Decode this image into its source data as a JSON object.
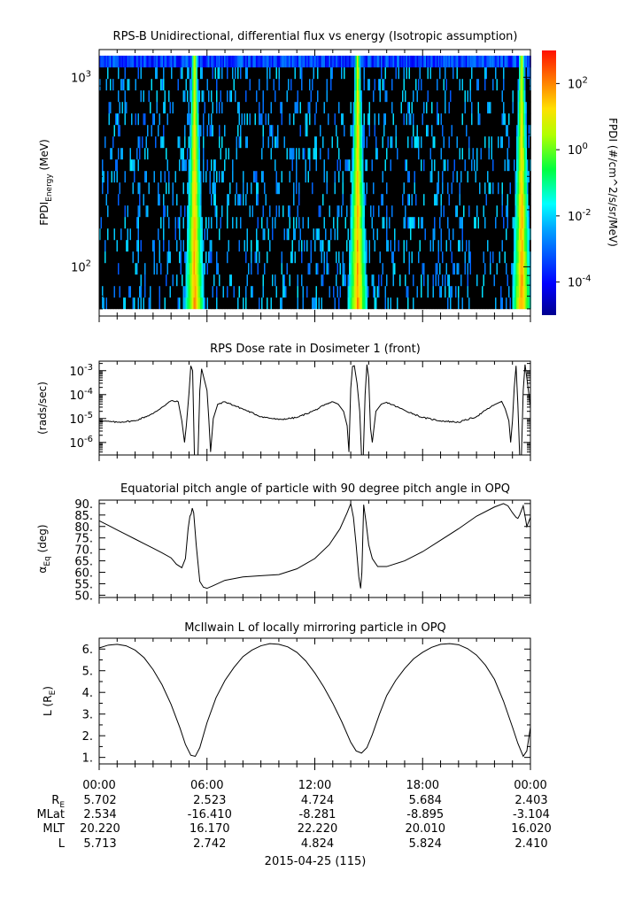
{
  "chart_data": [
    {
      "type": "heatmap",
      "title": "RPS-B  Unidirectional, differential flux vs energy (Isotropic assumption)",
      "ylabel": "FPDI_Energy (MeV)",
      "ylabel_main": "FPDI",
      "ylabel_sub": "Energy",
      "ylabel_unit": " (MeV)",
      "yscale": "log",
      "ylim": [
        55,
        1400
      ],
      "yticks": [
        {
          "value": 100,
          "label_base": "10",
          "label_exp": "2"
        },
        {
          "value": 1000,
          "label_base": "10",
          "label_exp": "3"
        }
      ],
      "xlim_hours": [
        0,
        24
      ],
      "colorbar": {
        "label": "FPDI (#/cm^2/s/sr/MeV)",
        "scale": "log",
        "range_log10": [
          -5,
          3
        ],
        "ticks": [
          {
            "log10": 2,
            "label_base": "10",
            "label_exp": "2"
          },
          {
            "log10": 0,
            "label_base": "10",
            "label_exp": "0"
          },
          {
            "log10": -2,
            "label_base": "10",
            "label_exp": "-2"
          },
          {
            "log10": -4,
            "label_base": "10",
            "label_exp": "-4"
          }
        ]
      },
      "radiation_belt_crossings_hours": [
        5.0,
        5.55,
        14.1,
        14.6,
        23.2,
        23.75
      ],
      "energy_channels": 22
    },
    {
      "type": "line",
      "title": "RPS  Dose rate in Dosimeter 1 (front)",
      "ylabel": "(rads/sec)",
      "yscale": "log",
      "ylim": [
        3e-07,
        0.0025
      ],
      "yticks": [
        {
          "value": 0.001,
          "label_base": "10",
          "label_exp": "-3"
        },
        {
          "value": 0.0001,
          "label_base": "10",
          "label_exp": "-4"
        },
        {
          "value": 1e-05,
          "label_base": "10",
          "label_exp": "-5"
        },
        {
          "value": 1e-06,
          "label_base": "10",
          "label_exp": "-6"
        }
      ],
      "x_hours": [
        0,
        1,
        2,
        3,
        3.5,
        4,
        4.4,
        4.5,
        4.6,
        4.75,
        4.85,
        5.0,
        5.1,
        5.2,
        5.3,
        5.5,
        5.6,
        5.7,
        6.0,
        6.1,
        6.2,
        6.35,
        6.6,
        7,
        8,
        9,
        10,
        11,
        12,
        12.5,
        13,
        13.3,
        13.6,
        13.8,
        13.9,
        14.0,
        14.1,
        14.2,
        14.35,
        14.5,
        14.6,
        14.7,
        14.8,
        14.9,
        15.0,
        15.1,
        15.2,
        15.4,
        15.7,
        16,
        17,
        18,
        19,
        20,
        21,
        21.5,
        22,
        22.4,
        22.6,
        22.8,
        22.9,
        23.0,
        23.1,
        23.2,
        23.3,
        23.4,
        23.5,
        23.6,
        23.7,
        23.8,
        24
      ],
      "y_values": [
        8e-06,
        7e-06,
        8e-06,
        1.6e-05,
        3e-05,
        5.5e-05,
        5e-05,
        2e-05,
        8e-06,
        1e-06,
        5e-06,
        0.00012,
        0.0016,
        0.001,
        3e-07,
        3e-07,
        0.00015,
        0.0012,
        0.00015,
        1e-05,
        4e-07,
        1e-05,
        4e-05,
        5e-05,
        2.5e-05,
        1.2e-05,
        9e-06,
        1.1e-05,
        2.2e-05,
        3.5e-05,
        5e-05,
        4e-05,
        2e-05,
        5e-06,
        4e-07,
        0.00018,
        0.0015,
        0.0016,
        0.0003,
        2e-05,
        3e-07,
        3e-07,
        0.0001,
        0.0018,
        0.0005,
        4e-06,
        1e-06,
        2e-05,
        4e-05,
        4.8e-05,
        2.2e-05,
        1.1e-05,
        8e-06,
        7e-06,
        1.2e-05,
        2.2e-05,
        3.8e-05,
        5.2e-05,
        2.5e-05,
        8e-06,
        1e-06,
        8e-06,
        0.0002,
        0.0016,
        4e-05,
        3e-07,
        3e-07,
        0.00015,
        0.0018,
        0.0005,
        3e-05
      ]
    },
    {
      "type": "line",
      "title": "Equatorial pitch angle of particle with 90 degree pitch angle in OPQ",
      "ylabel": "α_Eq (deg)",
      "ylabel_main": "α",
      "ylabel_sub": "Eq",
      "ylabel_unit": " (deg)",
      "ylim": [
        49,
        91.5
      ],
      "yticks": [
        90,
        85,
        80,
        75,
        70,
        65,
        60,
        55,
        50
      ],
      "ytick_labels": [
        "90.",
        "85.",
        "80.",
        "75.",
        "70.",
        "65.",
        "60.",
        "55.",
        "50."
      ],
      "x_hours": [
        0,
        0.5,
        1,
        1.5,
        2,
        2.5,
        3,
        3.5,
        4,
        4.3,
        4.6,
        4.8,
        4.95,
        5.05,
        5.12,
        5.18,
        5.26,
        5.4,
        5.6,
        5.8,
        6.0,
        6.3,
        7,
        8,
        9,
        10,
        11,
        12,
        12.8,
        13.4,
        13.8,
        14.0,
        14.15,
        14.3,
        14.45,
        14.55,
        14.62,
        14.72,
        14.85,
        15.0,
        15.2,
        15.5,
        16,
        17,
        18,
        19,
        20,
        21,
        22,
        22.5,
        22.75,
        23.0,
        23.1,
        23.2,
        23.3,
        23.4,
        23.6,
        23.8,
        24
      ],
      "y_values": [
        82.5,
        80.5,
        78.5,
        76.5,
        74.5,
        72.5,
        70.5,
        68.5,
        66.3,
        63.5,
        62,
        66,
        79,
        84.5,
        85.5,
        88,
        86,
        72,
        56,
        53.5,
        53,
        54,
        56.5,
        58,
        58.5,
        59,
        61.5,
        66,
        72,
        79,
        86,
        90,
        84,
        72,
        58,
        53,
        60,
        89.5,
        82,
        72,
        66,
        62.5,
        62.5,
        65,
        69,
        74,
        79,
        84.5,
        88.5,
        90,
        89,
        86,
        85,
        84,
        83.5,
        85,
        89,
        80,
        84
      ]
    },
    {
      "type": "line",
      "title": "McIlwain L of locally mirroring particle in OPQ",
      "ylabel": "L (R_E)",
      "ylabel_main": "L (R",
      "ylabel_sub": "E",
      "ylabel_unit": ")",
      "ylim": [
        0.7,
        6.5
      ],
      "yticks": [
        6,
        5,
        4,
        3,
        2,
        1
      ],
      "ytick_labels": [
        "6.",
        "5.",
        "4.",
        "3.",
        "2.",
        "1."
      ],
      "x_hours": [
        0,
        0.5,
        1,
        1.5,
        2,
        2.5,
        3,
        3.5,
        4,
        4.5,
        4.8,
        5.1,
        5.35,
        5.6,
        6,
        6.5,
        7,
        7.5,
        8,
        8.5,
        9,
        9.5,
        10,
        10.5,
        11,
        11.5,
        12,
        12.5,
        13,
        13.5,
        14,
        14.3,
        14.6,
        14.9,
        15.2,
        15.6,
        16,
        16.5,
        17,
        17.5,
        18,
        18.5,
        19,
        19.5,
        20,
        20.5,
        21,
        21.5,
        22,
        22.5,
        23,
        23.3,
        23.6,
        23.8,
        24
      ],
      "y_values": [
        6.05,
        6.18,
        6.22,
        6.15,
        5.95,
        5.6,
        5.05,
        4.35,
        3.45,
        2.35,
        1.6,
        1.1,
        1.05,
        1.45,
        2.6,
        3.75,
        4.55,
        5.15,
        5.65,
        5.95,
        6.15,
        6.25,
        6.22,
        6.1,
        5.85,
        5.45,
        4.9,
        4.25,
        3.5,
        2.65,
        1.7,
        1.3,
        1.2,
        1.45,
        2.05,
        3.0,
        3.85,
        4.55,
        5.1,
        5.55,
        5.85,
        6.08,
        6.22,
        6.25,
        6.2,
        6.02,
        5.72,
        5.25,
        4.6,
        3.6,
        2.4,
        1.65,
        1.05,
        1.3,
        2.4
      ]
    }
  ],
  "time_axis": {
    "tick_labels": [
      "00:00",
      "06:00",
      "12:00",
      "18:00",
      "00:00"
    ],
    "date_label": "2015-04-25 (115)",
    "rows": [
      {
        "name_main": "R",
        "name_sub": "E",
        "values": [
          "5.702",
          "2.523",
          "4.724",
          "5.684",
          "2.403"
        ]
      },
      {
        "name_main": "MLat",
        "name_sub": "",
        "values": [
          "2.534",
          "-16.410",
          "-8.281",
          "-8.895",
          "-3.104"
        ]
      },
      {
        "name_main": "MLT",
        "name_sub": "",
        "values": [
          "20.220",
          "16.170",
          "22.220",
          "20.010",
          "16.020"
        ]
      },
      {
        "name_main": "L",
        "name_sub": "",
        "values": [
          "5.713",
          "2.742",
          "4.824",
          "5.824",
          "2.410"
        ]
      }
    ]
  }
}
